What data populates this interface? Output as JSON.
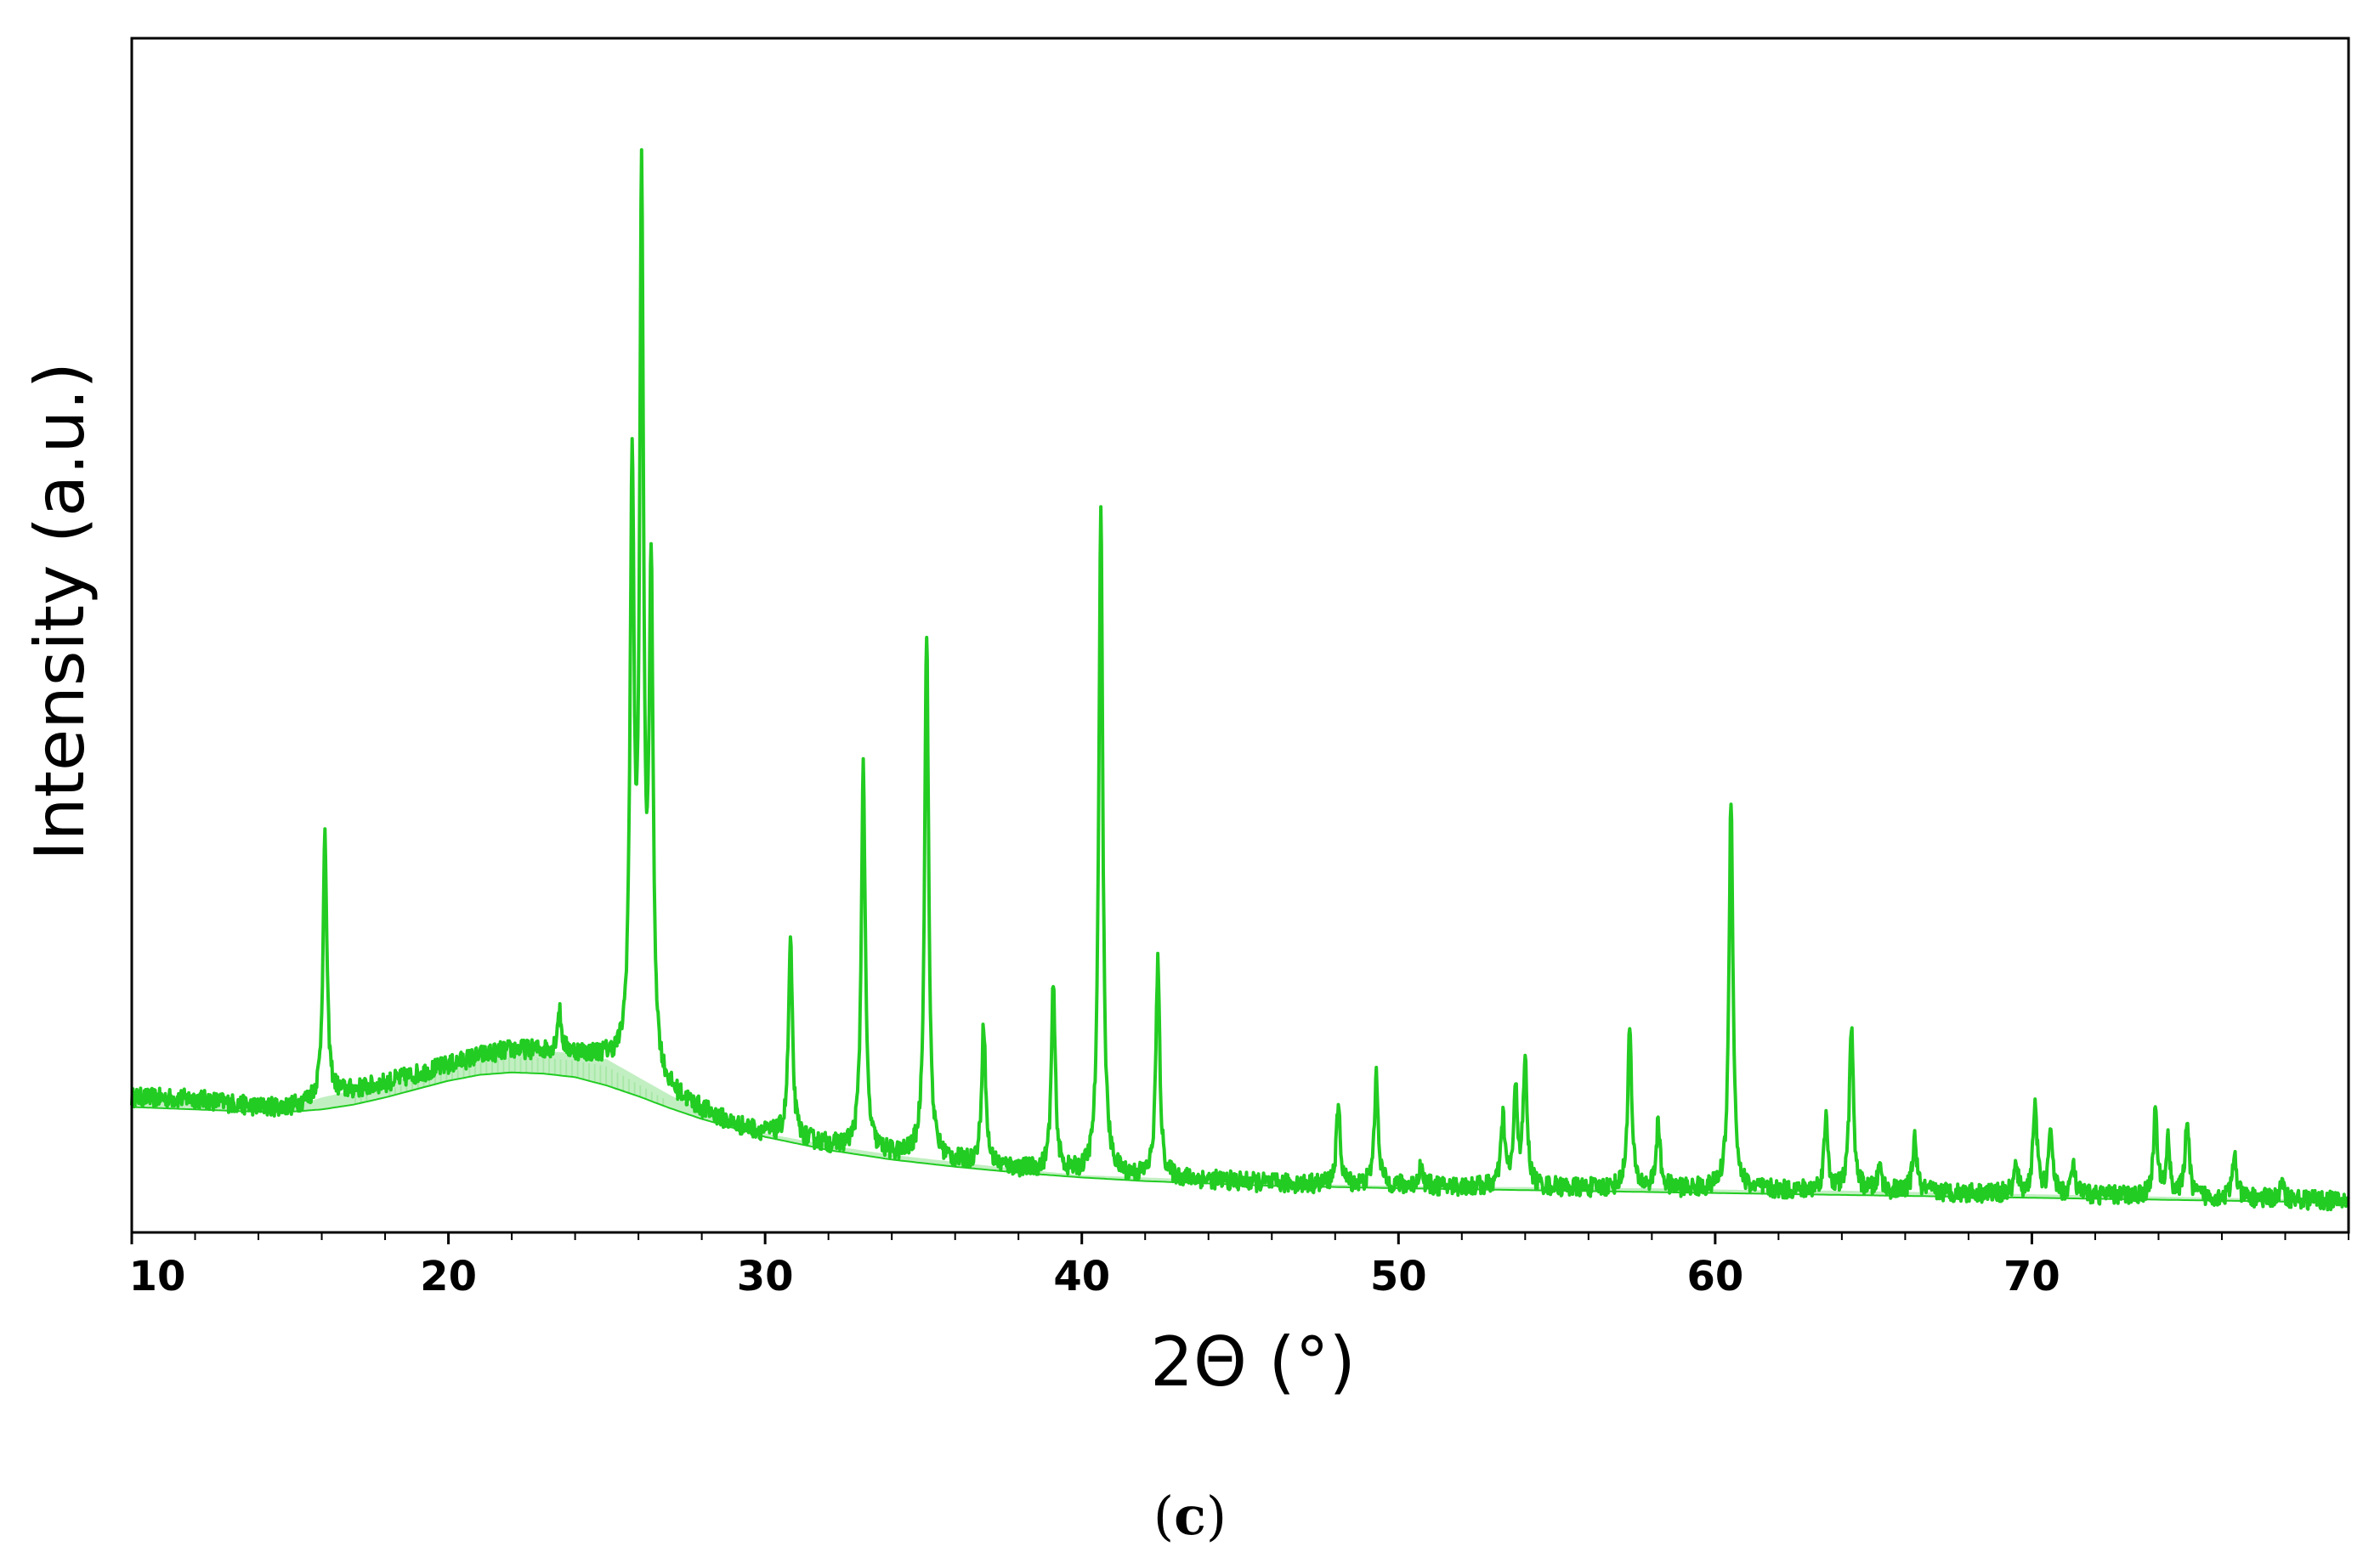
{
  "chart_data": {
    "type": "line",
    "xlabel": "2Θ (°)",
    "ylabel": "Intensity (a.u.)",
    "panel_label": "(c)",
    "panel_label_open": "(",
    "panel_label_letter": "c",
    "panel_label_close": ")",
    "xlim": [
      10,
      80
    ],
    "ylim": [
      0,
      100
    ],
    "x_ticks": [
      10,
      20,
      30,
      40,
      50,
      60,
      70
    ],
    "x_tick_labels": [
      "10",
      "20",
      "30",
      "40",
      "50",
      "60",
      "70"
    ],
    "y_tick_labels_shown": false,
    "grid": false,
    "legend": false,
    "colors": {
      "pattern": "#22cc22",
      "background_fill": "#a8e8a8",
      "axes": "#000000"
    },
    "series": [
      {
        "role": "diffraction pattern",
        "baseline_x": [
          10,
          12,
          14,
          15,
          16,
          18,
          20,
          21,
          22,
          23,
          24,
          25,
          26,
          27,
          28,
          29,
          30,
          32,
          34,
          36,
          38,
          40,
          42,
          44,
          46,
          48,
          50,
          52,
          54,
          56,
          58,
          60,
          62,
          64,
          66,
          68,
          70,
          72,
          74,
          76,
          78,
          80
        ],
        "baseline_y": [
          11.3,
          11.2,
          10.5,
          10.5,
          11.3,
          12.5,
          14.0,
          14.8,
          15.3,
          15.2,
          15.0,
          14.5,
          13.0,
          11.5,
          10.2,
          9.0,
          8.3,
          7.3,
          6.5,
          5.9,
          5.3,
          4.8,
          4.6,
          4.4,
          4.1,
          4.0,
          3.9,
          3.8,
          3.8,
          3.7,
          3.7,
          3.6,
          3.5,
          3.5,
          3.4,
          3.3,
          3.2,
          3.1,
          3.0,
          2.9,
          2.8,
          2.6
        ],
        "peaks": [
          {
            "x": 16.1,
            "y": 33.0
          },
          {
            "x": 23.5,
            "y": 18.5
          },
          {
            "x": 25.8,
            "y": 62.0
          },
          {
            "x": 26.1,
            "y": 85.0
          },
          {
            "x": 26.4,
            "y": 53.0
          },
          {
            "x": 30.8,
            "y": 24.3
          },
          {
            "x": 33.1,
            "y": 39.0
          },
          {
            "x": 35.1,
            "y": 50.5
          },
          {
            "x": 36.9,
            "y": 17.5
          },
          {
            "x": 39.1,
            "y": 20.5
          },
          {
            "x": 40.6,
            "y": 61.0
          },
          {
            "x": 42.4,
            "y": 22.5
          },
          {
            "x": 48.1,
            "y": 10.5
          },
          {
            "x": 49.3,
            "y": 13.0
          },
          {
            "x": 50.7,
            "y": 5.5
          },
          {
            "x": 53.3,
            "y": 9.5
          },
          {
            "x": 53.7,
            "y": 11.5
          },
          {
            "x": 54.0,
            "y": 14.0
          },
          {
            "x": 57.3,
            "y": 17.0
          },
          {
            "x": 58.2,
            "y": 9.0
          },
          {
            "x": 60.5,
            "y": 36.5
          },
          {
            "x": 63.5,
            "y": 9.5
          },
          {
            "x": 64.3,
            "y": 17.5
          },
          {
            "x": 65.2,
            "y": 5.5
          },
          {
            "x": 66.3,
            "y": 8.0
          },
          {
            "x": 69.5,
            "y": 5.5
          },
          {
            "x": 70.1,
            "y": 11.0
          },
          {
            "x": 70.6,
            "y": 8.5
          },
          {
            "x": 71.3,
            "y": 5.5
          },
          {
            "x": 73.9,
            "y": 10.0
          },
          {
            "x": 74.3,
            "y": 7.5
          },
          {
            "x": 74.9,
            "y": 9.5
          },
          {
            "x": 76.4,
            "y": 6.5
          },
          {
            "x": 77.9,
            "y": 4.0
          }
        ]
      },
      {
        "role": "amorphous background",
        "x": [
          10,
          12,
          14,
          15,
          16,
          17,
          18,
          19,
          20,
          21,
          22,
          23,
          24,
          25,
          26,
          27,
          28,
          30,
          32,
          34,
          36,
          38,
          40,
          42,
          44,
          46,
          48,
          50,
          55,
          60,
          65,
          70,
          75,
          80
        ],
        "y": [
          10.5,
          10.3,
          10.1,
          10.1,
          10.3,
          10.7,
          11.3,
          12.0,
          12.7,
          13.2,
          13.4,
          13.3,
          13.0,
          12.3,
          11.4,
          10.4,
          9.5,
          8.0,
          6.9,
          6.1,
          5.5,
          5.0,
          4.6,
          4.3,
          4.1,
          3.9,
          3.8,
          3.7,
          3.5,
          3.3,
          3.1,
          2.9,
          2.7,
          2.5
        ]
      }
    ]
  }
}
